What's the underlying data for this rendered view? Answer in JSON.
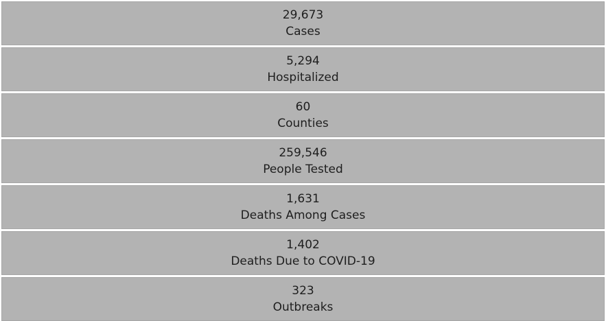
{
  "stats": [
    {
      "value": "29,673",
      "label": "Cases"
    },
    {
      "value": "5,294",
      "label": "Hospitalized"
    },
    {
      "value": "60",
      "label": "Counties"
    },
    {
      "value": "259,546",
      "label": "People Tested"
    },
    {
      "value": "1,631",
      "label": "Deaths Among Cases"
    },
    {
      "value": "1,402",
      "label": "Deaths Due to COVID-19"
    },
    {
      "value": "323",
      "label": "Outbreaks"
    }
  ]
}
